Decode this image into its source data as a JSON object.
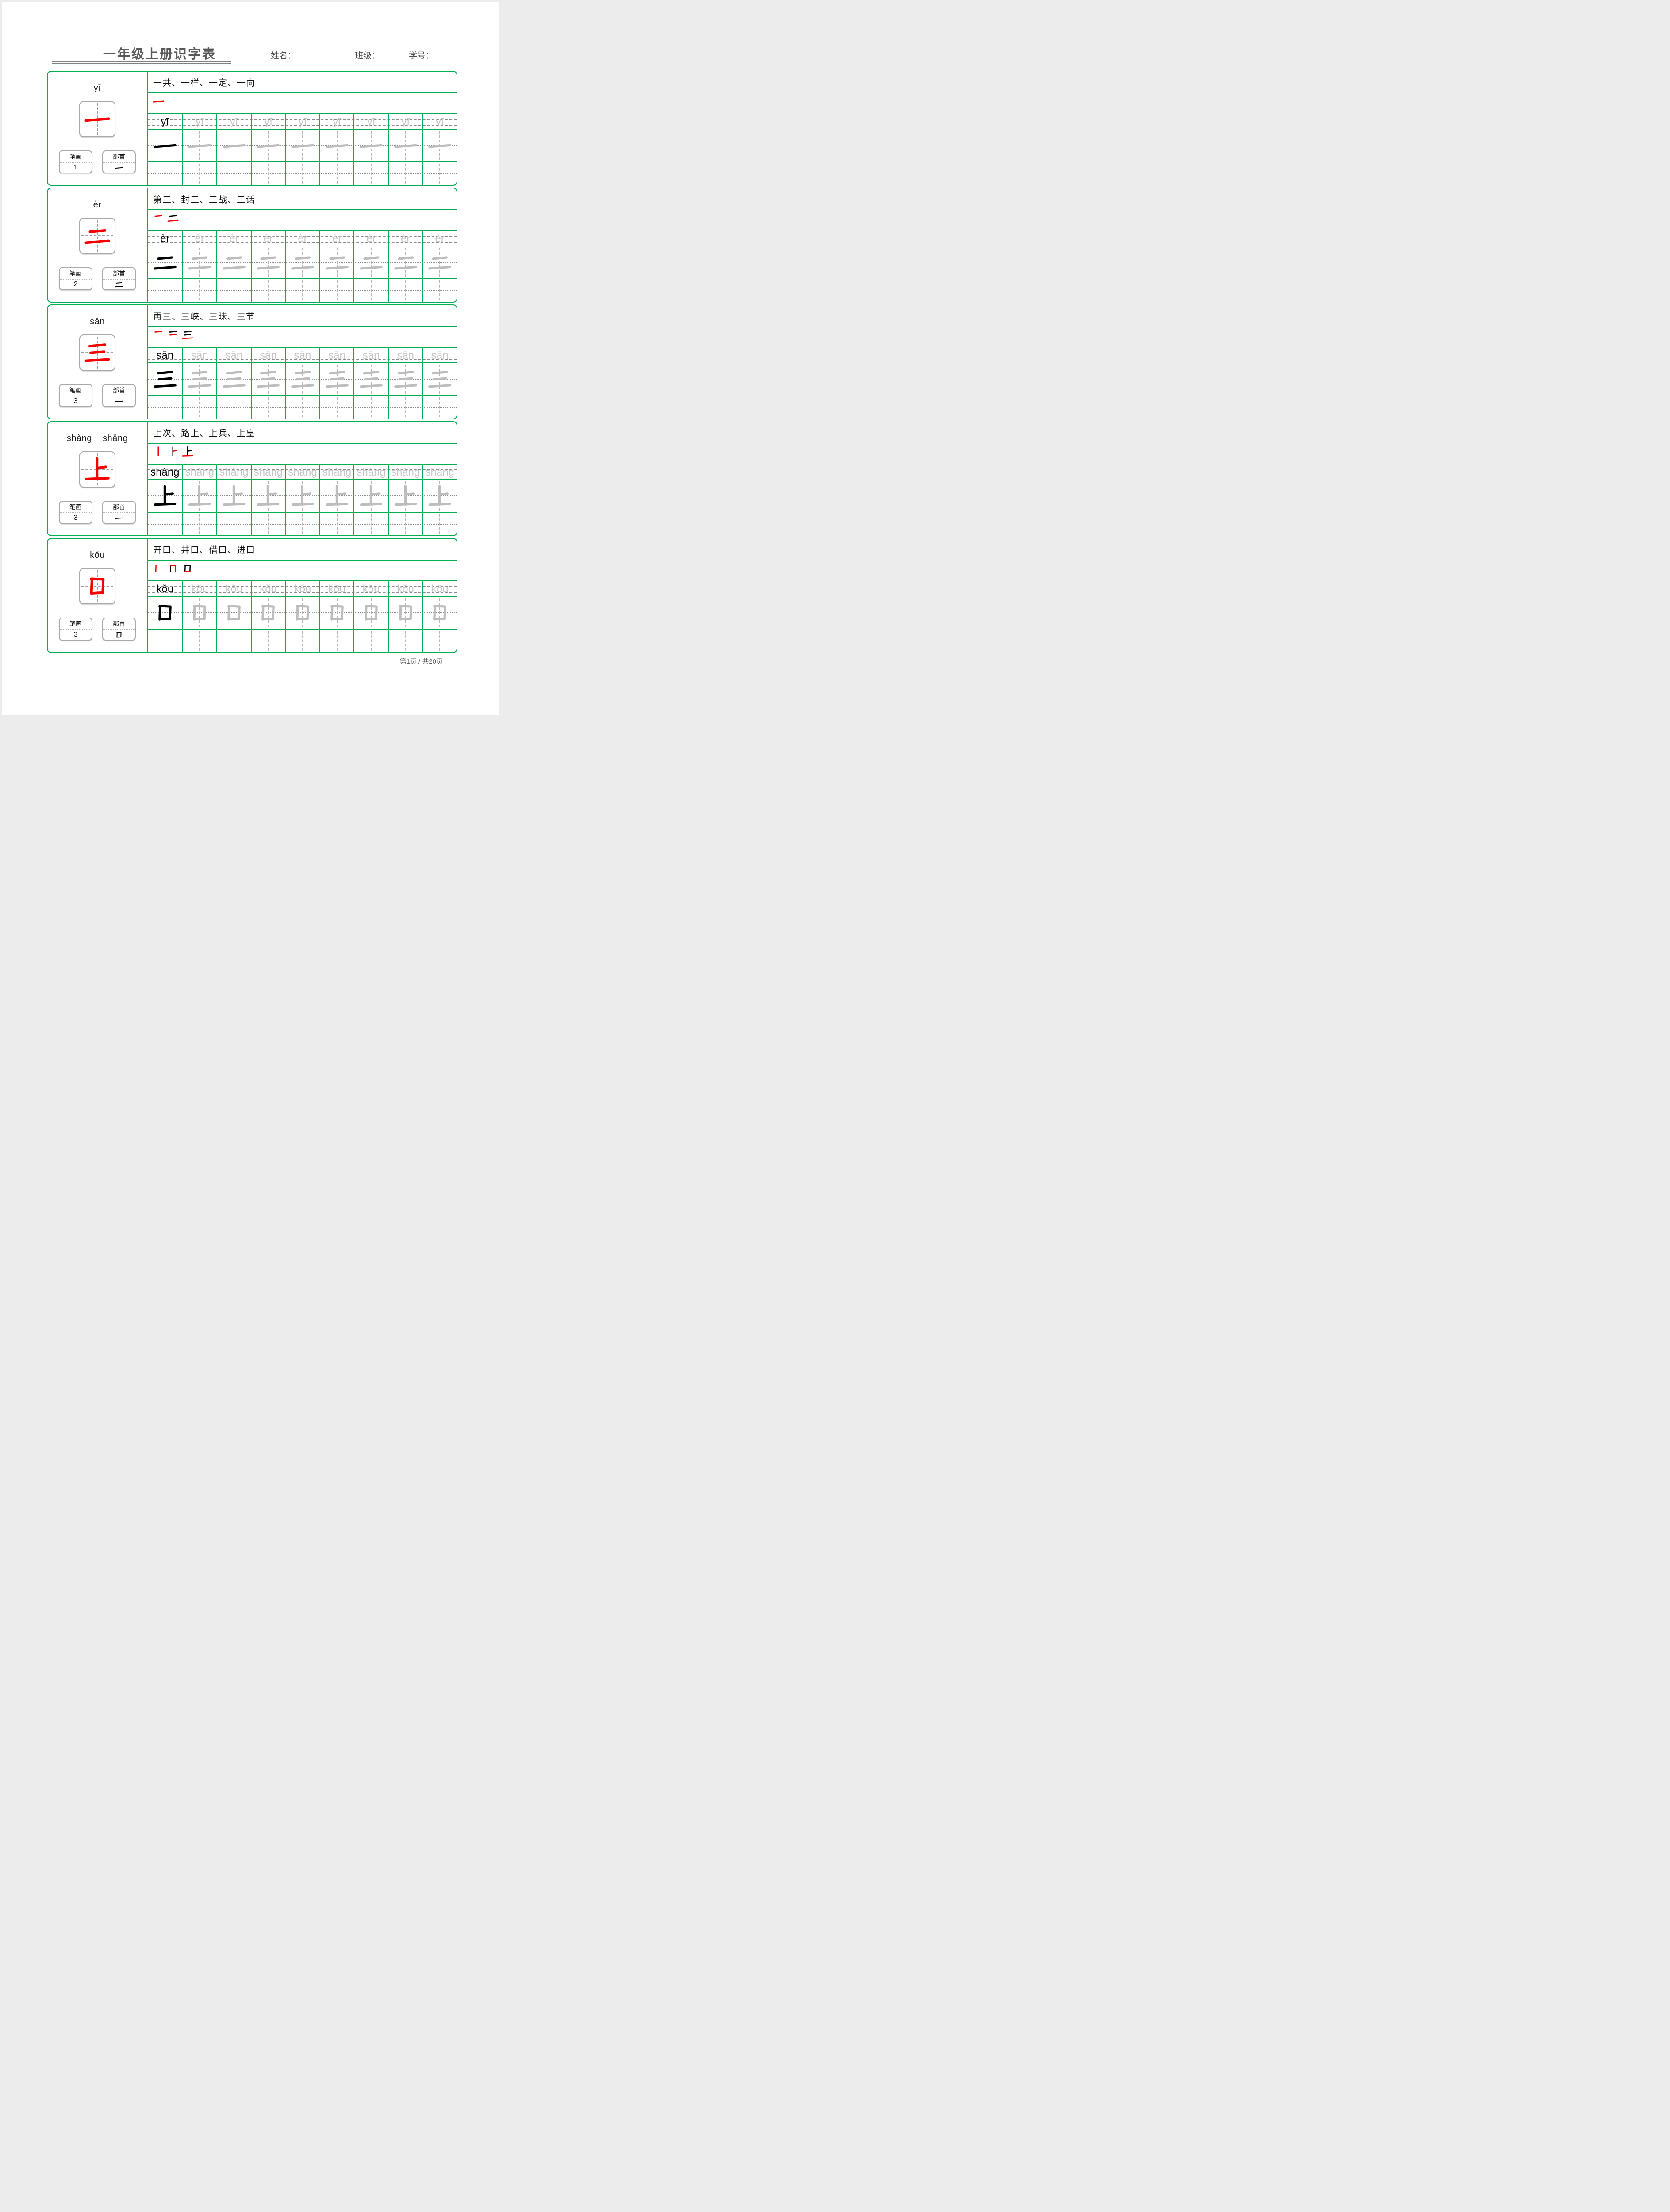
{
  "page": {
    "title": "一年级上册识字表",
    "fields": [
      {
        "label": "姓名："
      },
      {
        "label": "班级："
      },
      {
        "label": "学号："
      }
    ],
    "footer": "第1页 / 共20页"
  },
  "labels": {
    "strokes": "笔画",
    "radical": "部首"
  },
  "practice": {
    "columns": 9
  },
  "colors": {
    "green": "#00AD50",
    "red": "#F40000",
    "black": "#000000",
    "gray_glyph": "#BDBDBD",
    "gray_pinyin": "#C6C6C6",
    "title_gray": "#595959"
  },
  "cards": [
    {
      "char": "一",
      "pinyins": [
        "yī"
      ],
      "pinyin_display": "yī",
      "words": "一共、一样、一定、一向",
      "stroke_count": "1",
      "radical": "一"
    },
    {
      "char": "二",
      "pinyins": [
        "èr"
      ],
      "pinyin_display": "èr",
      "words": "第二、封二、二战、二话",
      "stroke_count": "2",
      "radical": "二"
    },
    {
      "char": "三",
      "pinyins": [
        "sān"
      ],
      "pinyin_display": "sān",
      "words": "再三、三峡、三昧、三节",
      "stroke_count": "3",
      "radical": "一"
    },
    {
      "char": "上",
      "pinyins": [
        "shàng",
        "shǎng"
      ],
      "pinyin_display": "shàng    shǎng",
      "words": "上次、路上、上兵、上皇",
      "stroke_count": "3",
      "radical": "一"
    },
    {
      "char": "口",
      "pinyins": [
        "kǒu"
      ],
      "pinyin_display": "kǒu",
      "words": "开口、井口、借口、进口",
      "stroke_count": "3",
      "radical": "口"
    }
  ],
  "glyphs": {
    "一": [
      [
        [
          10,
          55
        ],
        [
          90,
          49
        ]
      ]
    ],
    "二": [
      [
        [
          24,
          36
        ],
        [
          77,
          31
        ]
      ],
      [
        [
          10,
          74
        ],
        [
          90,
          68
        ]
      ]
    ],
    "三": [
      [
        [
          23,
          27
        ],
        [
          77,
          22
        ]
      ],
      [
        [
          26,
          51
        ],
        [
          74,
          47
        ]
      ],
      [
        [
          10,
          79
        ],
        [
          90,
          74
        ]
      ]
    ],
    "上": [
      [
        [
          49,
          12
        ],
        [
          49,
          82
        ]
      ],
      [
        [
          51,
          45
        ],
        [
          80,
          41
        ]
      ],
      [
        [
          11,
          84
        ],
        [
          89,
          81
        ]
      ]
    ],
    "口": [
      [
        [
          31,
          24
        ],
        [
          29,
          76
        ]
      ],
      [
        [
          29,
          24
        ],
        [
          71,
          26
        ],
        [
          69,
          74
        ]
      ],
      [
        [
          30,
          75
        ],
        [
          70,
          73
        ]
      ]
    ]
  }
}
